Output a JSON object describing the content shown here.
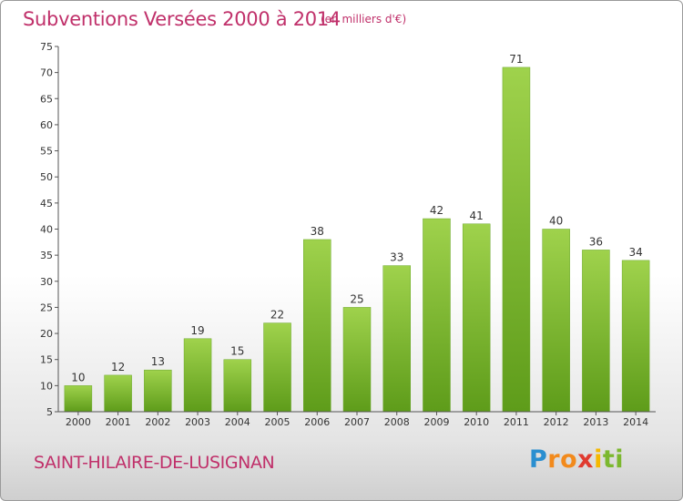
{
  "header": {
    "title": "Subventions Versées 2000 à 2014",
    "subtitle": "(en milliers d'€)"
  },
  "footer": {
    "commune": "SAINT-HILAIRE-DE-LUSIGNAN",
    "logo": {
      "parts": [
        "P",
        "ro",
        "x",
        "i",
        "ti"
      ],
      "colors": [
        "#2a8fd0",
        "#f28a1c",
        "#e03a2f",
        "#f5b800",
        "#7cb82f"
      ]
    }
  },
  "chart_data": {
    "type": "bar",
    "title": "Subventions Versées 2000 à 2014",
    "subtitle": "(en milliers d'€)",
    "categories": [
      "2000",
      "2001",
      "2002",
      "2003",
      "2004",
      "2005",
      "2006",
      "2007",
      "2008",
      "2009",
      "2010",
      "2011",
      "2012",
      "2013",
      "2014"
    ],
    "values": [
      10,
      12,
      13,
      19,
      15,
      22,
      38,
      25,
      33,
      42,
      41,
      71,
      40,
      36,
      34
    ],
    "ylim": [
      5,
      75
    ],
    "yticks": [
      5,
      10,
      15,
      20,
      25,
      30,
      35,
      40,
      45,
      50,
      55,
      60,
      65,
      70,
      75
    ],
    "grid": false,
    "bar_color_top": "#9fd24c",
    "bar_color_bottom": "#5e9c1a",
    "text_color": "#c0306a"
  }
}
